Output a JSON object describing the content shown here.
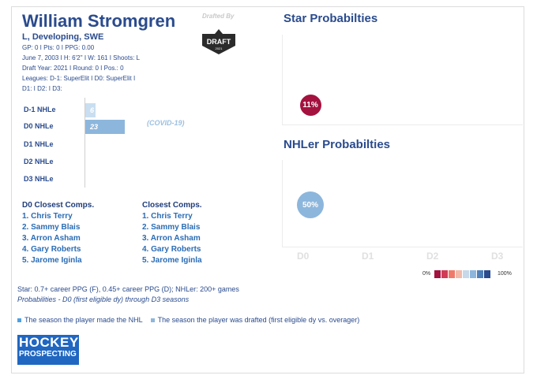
{
  "player": {
    "name": "William Stromgren",
    "subtitle": "L, Developing, SWE",
    "line_stats": "GP: 0 I Pts: 0 I PPG: 0.00",
    "line_bio": "June 7, 2003 I H: 6'2'' I W: 161 I Shoots: L",
    "line_draft": "Draft Year: 2021 I Round: 0 I Pos.: 0",
    "line_leagues": "Leagues: D-1: SuperElit I D0: SuperElit I",
    "line_leagues2": "D1:  I D2:  I D3:"
  },
  "draft_logo": {
    "caption": "Drafted By",
    "logo_text": "DRAFT",
    "logo_year": "2021"
  },
  "nhle": {
    "rows": [
      {
        "label": "D-1 NHLe",
        "value": 6,
        "display": "6",
        "color": "#c9def0"
      },
      {
        "label": "D0 NHLe",
        "value": 23,
        "display": "23",
        "color": "#8db6dc"
      },
      {
        "label": "D1 NHLe",
        "value": 0,
        "display": "",
        "color": "#8db6dc"
      },
      {
        "label": "D2 NHLe",
        "value": 0,
        "display": "",
        "color": "#8db6dc"
      },
      {
        "label": "D3 NHLe",
        "value": 0,
        "display": "",
        "color": "#8db6dc"
      }
    ],
    "note": "(COVID-19)"
  },
  "comps": {
    "d0_title": "D0 Closest Comps.",
    "d0_list": [
      "1. Chris Terry",
      "2. Sammy Blais",
      "3. Arron Asham",
      "4. Gary Roberts",
      "5. Jarome Iginla"
    ],
    "all_title": "Closest Comps.",
    "all_list": [
      "1. Chris Terry",
      "2. Sammy Blais",
      "3. Arron Asham",
      "4. Gary Roberts",
      "5. Jarome Iginla"
    ]
  },
  "charts": {
    "star_title": "Star Probabilties",
    "nhler_title": "NHLer Probabilties",
    "x_labels": [
      "D0",
      "D1",
      "D2",
      "D3"
    ],
    "legend_min": "0%",
    "legend_max": "100%",
    "legend_colors": [
      "#a4123f",
      "#d03a55",
      "#f07a6a",
      "#f2b8a8",
      "#c6d8ea",
      "#8db6dc",
      "#4f7fb8",
      "#2a4b8d"
    ]
  },
  "chart_data": [
    {
      "type": "scatter",
      "title": "Star Probabilties",
      "categories": [
        "D0",
        "D1",
        "D2",
        "D3"
      ],
      "values": [
        11,
        null,
        null,
        null
      ],
      "labels": [
        "11%"
      ],
      "color": "#a4123f"
    },
    {
      "type": "scatter",
      "title": "NHLer Probabilties",
      "categories": [
        "D0",
        "D1",
        "D2",
        "D3"
      ],
      "values": [
        50,
        null,
        null,
        null
      ],
      "labels": [
        "50%"
      ],
      "color": "#8db6dc"
    }
  ],
  "footer": {
    "definition": "Star: 0.7+ career PPG (F), 0.45+ career PPG (D); NHLer: 200+ games",
    "probabilities_note": "Probabilities - D0 (first eligible dy) through D3 seasons",
    "legend_made_nhl": "The season the player made the NHL",
    "legend_drafted": "The season the player was drafted (first eligible dy vs. overager)",
    "made_nhl_color": "#4f9fe0",
    "drafted_color": "#8db6dc"
  },
  "brand": {
    "line1": "HOCKEY",
    "line2": "PROSPECTING"
  }
}
